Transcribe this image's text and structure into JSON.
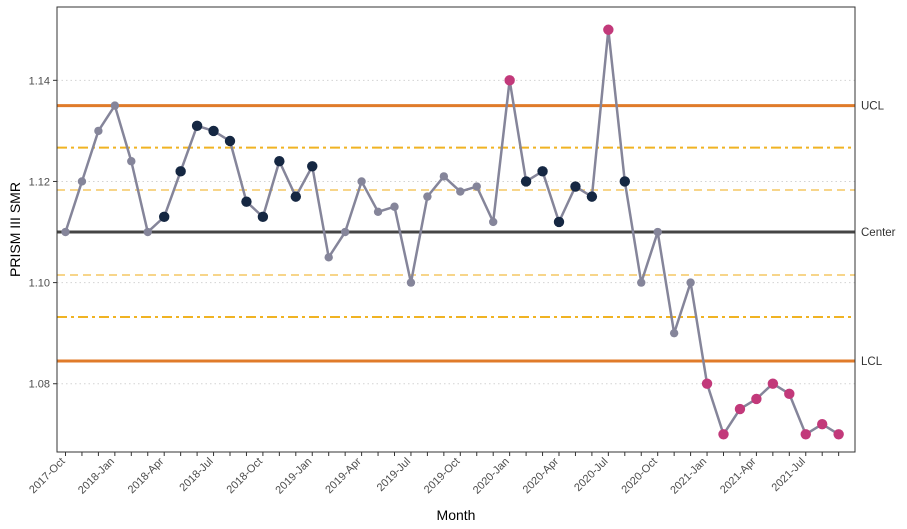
{
  "chart_data": {
    "type": "line",
    "title": "",
    "xlabel": "Month",
    "ylabel": "PRISM III SMR",
    "x_tick_labels": [
      "2017-Oct",
      "2018-Jan",
      "2018-Apr",
      "2018-Jul",
      "2018-Oct",
      "2019-Jan",
      "2019-Apr",
      "2019-Jul",
      "2019-Oct",
      "2020-Jan",
      "2020-Apr",
      "2020-Jul",
      "2020-Oct",
      "2021-Jan",
      "2021-Apr",
      "2021-Jul"
    ],
    "y_tick_labels": [
      "1.08",
      "1.10",
      "1.12",
      "1.14"
    ],
    "ylim": [
      1.0665,
      1.1545
    ],
    "grid": true,
    "months": [
      "2017-Oct",
      "2017-Nov",
      "2017-Dec",
      "2018-Jan",
      "2018-Feb",
      "2018-Mar",
      "2018-Apr",
      "2018-May",
      "2018-Jun",
      "2018-Jul",
      "2018-Aug",
      "2018-Sep",
      "2018-Oct",
      "2018-Nov",
      "2018-Dec",
      "2019-Jan",
      "2019-Feb",
      "2019-Mar",
      "2019-Apr",
      "2019-May",
      "2019-Jun",
      "2019-Jul",
      "2019-Aug",
      "2019-Sep",
      "2019-Oct",
      "2019-Nov",
      "2019-Dec",
      "2020-Jan",
      "2020-Feb",
      "2020-Mar",
      "2020-Apr",
      "2020-May",
      "2020-Jun",
      "2020-Jul",
      "2020-Aug",
      "2020-Sep",
      "2020-Oct",
      "2020-Nov",
      "2020-Dec",
      "2021-Jan",
      "2021-Feb",
      "2021-Mar",
      "2021-Apr",
      "2021-May",
      "2021-Jun",
      "2021-Jul",
      "2021-Aug",
      "2021-Sep"
    ],
    "series": [
      {
        "values": [
          1.11,
          1.12,
          1.13,
          1.135,
          1.124,
          1.11,
          1.113,
          1.122,
          1.131,
          1.13,
          1.128,
          1.116,
          1.113,
          1.124,
          1.117,
          1.123,
          1.105,
          1.11,
          1.12,
          1.114,
          1.115,
          1.1,
          1.117,
          1.121,
          1.118,
          1.119,
          1.112,
          1.14,
          1.12,
          1.122,
          1.112,
          1.119,
          1.117,
          1.15,
          1.12,
          1.1,
          1.11,
          1.09,
          1.1,
          1.08,
          1.07,
          1.075,
          1.077,
          1.08,
          1.078,
          1.07,
          1.072,
          1.07
        ],
        "point_status": [
          "normal",
          "normal",
          "normal",
          "normal",
          "normal",
          "normal",
          "run",
          "run",
          "run",
          "run",
          "run",
          "run",
          "run",
          "run",
          "run",
          "run",
          "normal",
          "normal",
          "normal",
          "normal",
          "normal",
          "normal",
          "normal",
          "normal",
          "normal",
          "normal",
          "normal",
          "special",
          "run",
          "run",
          "run",
          "run",
          "run",
          "special",
          "run",
          "normal",
          "normal",
          "normal",
          "normal",
          "special",
          "special",
          "special",
          "special",
          "special",
          "special",
          "special",
          "special",
          "special"
        ]
      }
    ],
    "limits": [
      {
        "label": "UCL",
        "value": 1.135,
        "style": "solid",
        "color": "#E07B2A"
      },
      {
        "label": "Center",
        "value": 1.11,
        "style": "solid",
        "color": "#454545"
      },
      {
        "label": "LCL",
        "value": 1.0845,
        "style": "solid",
        "color": "#E07B2A"
      },
      {
        "label": "",
        "value": 1.1267,
        "style": "dashdot",
        "color": "#F0B323"
      },
      {
        "label": "",
        "value": 1.0932,
        "style": "dashdot",
        "color": "#F0B323"
      },
      {
        "label": "",
        "value": 1.1183,
        "style": "dashed",
        "color": "#F7D58A"
      },
      {
        "label": "",
        "value": 1.1015,
        "style": "dashed",
        "color": "#F7D58A"
      }
    ],
    "colors": {
      "line": "#85859A",
      "normal_point": "#85859A",
      "run_point": "#152742",
      "special_point": "#C2397A",
      "grid": "#D3D3D3",
      "panel_border": "#333333"
    }
  }
}
